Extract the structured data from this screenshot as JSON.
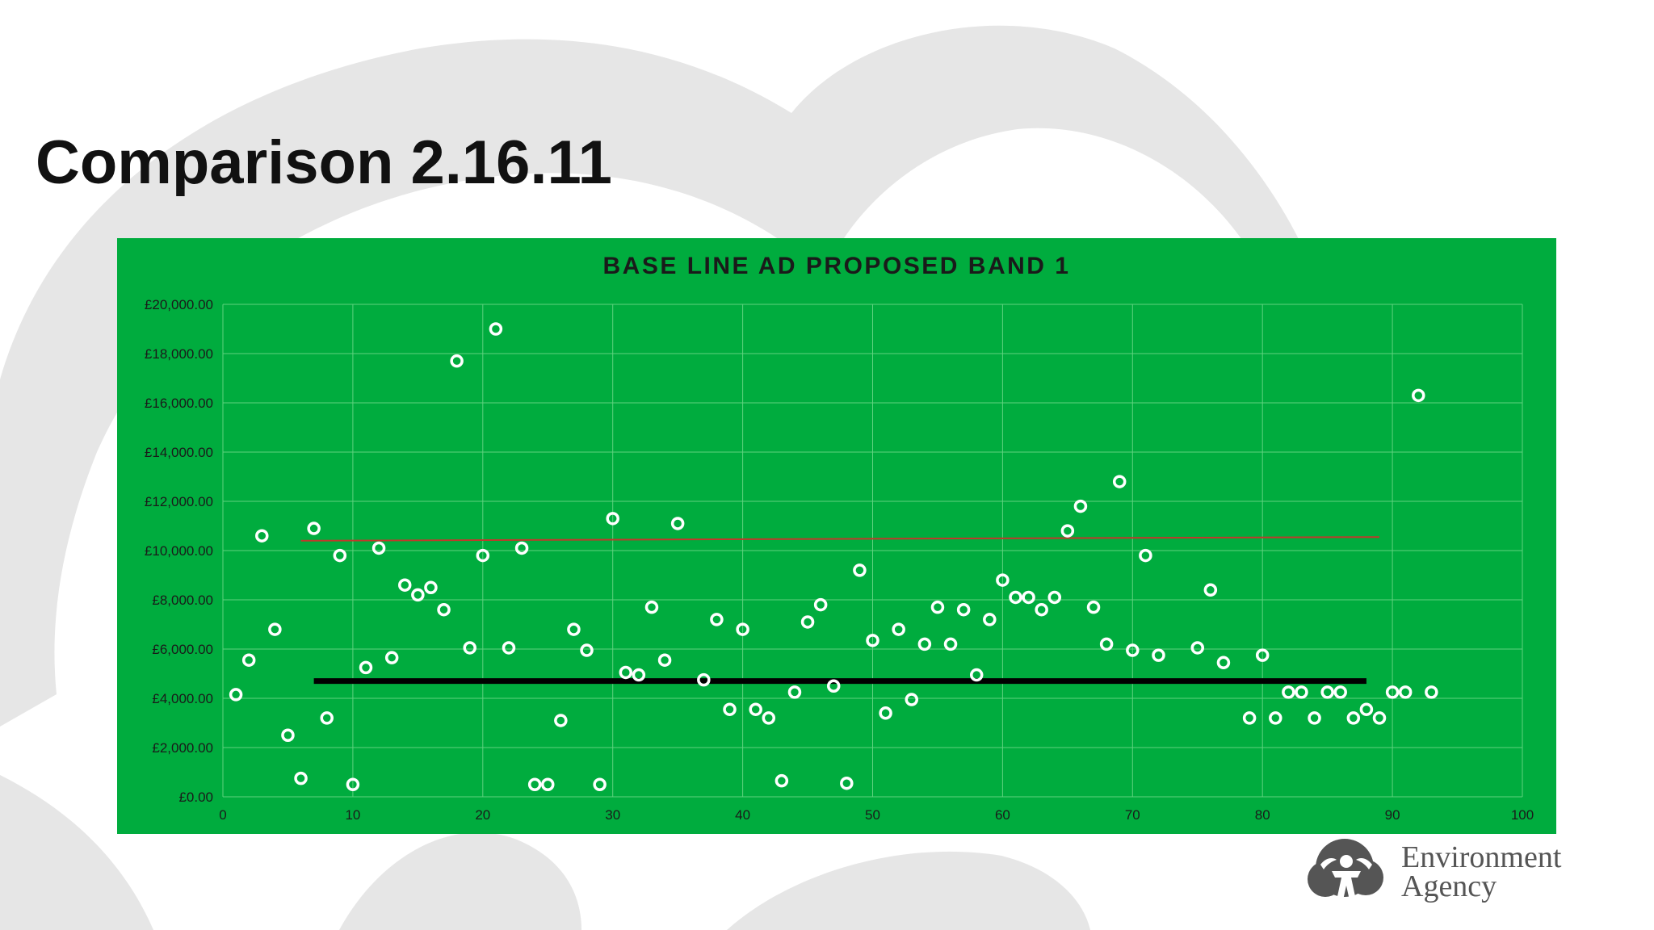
{
  "page": {
    "title": "Comparison 2.16.11",
    "logo_line1": "Environment",
    "logo_line2": "Agency"
  },
  "colors": {
    "chart_background": "#00ac3e",
    "marker": "#ffffff",
    "baseline": "#000000",
    "trendline": "#c0392b",
    "gridline": "#5fd27f"
  },
  "chart_data": {
    "type": "scatter",
    "title": "BASE LINE AD PROPOSED BAND 1",
    "xlabel": "",
    "ylabel": "",
    "xlim": [
      0,
      100
    ],
    "ylim": [
      0,
      20000
    ],
    "x_ticks": [
      "0",
      "10",
      "20",
      "30",
      "40",
      "50",
      "60",
      "70",
      "80",
      "90",
      "100"
    ],
    "y_ticks": [
      "£0.00",
      "£2,000.00",
      "£4,000.00",
      "£6,000.00",
      "£8,000.00",
      "£10,000.00",
      "£12,000.00",
      "£14,000.00",
      "£16,000.00",
      "£18,000.00",
      "£20,000.00"
    ],
    "grid": true,
    "legend": "none",
    "series": [
      {
        "type": "scatter",
        "points": [
          [
            1,
            4150
          ],
          [
            2,
            5550
          ],
          [
            3,
            10600
          ],
          [
            4,
            6800
          ],
          [
            5,
            2500
          ],
          [
            6,
            750
          ],
          [
            7,
            10900
          ],
          [
            8,
            3200
          ],
          [
            9,
            9800
          ],
          [
            10,
            500
          ],
          [
            11,
            5250
          ],
          [
            12,
            10100
          ],
          [
            13,
            5650
          ],
          [
            14,
            8600
          ],
          [
            15,
            8200
          ],
          [
            16,
            8500
          ],
          [
            17,
            7600
          ],
          [
            18,
            17700
          ],
          [
            19,
            6050
          ],
          [
            20,
            9800
          ],
          [
            21,
            19000
          ],
          [
            22,
            6050
          ],
          [
            23,
            10100
          ],
          [
            24,
            500
          ],
          [
            25,
            500
          ],
          [
            26,
            3100
          ],
          [
            27,
            6800
          ],
          [
            28,
            5950
          ],
          [
            29,
            500
          ],
          [
            30,
            11300
          ],
          [
            31,
            5050
          ],
          [
            32,
            4950
          ],
          [
            33,
            7700
          ],
          [
            34,
            5550
          ],
          [
            35,
            11100
          ],
          [
            37,
            4750
          ],
          [
            38,
            7200
          ],
          [
            39,
            3550
          ],
          [
            40,
            6800
          ],
          [
            41,
            3550
          ],
          [
            42,
            3200
          ],
          [
            43,
            650
          ],
          [
            44,
            4250
          ],
          [
            45,
            7100
          ],
          [
            46,
            7800
          ],
          [
            47,
            4500
          ],
          [
            48,
            550
          ],
          [
            49,
            9200
          ],
          [
            50,
            6350
          ],
          [
            51,
            3400
          ],
          [
            52,
            6800
          ],
          [
            53,
            3950
          ],
          [
            54,
            6200
          ],
          [
            55,
            7700
          ],
          [
            56,
            6200
          ],
          [
            57,
            7600
          ],
          [
            58,
            4950
          ],
          [
            59,
            7200
          ],
          [
            60,
            8800
          ],
          [
            61,
            8100
          ],
          [
            62,
            8100
          ],
          [
            63,
            7600
          ],
          [
            64,
            8100
          ],
          [
            65,
            10800
          ],
          [
            66,
            11800
          ],
          [
            67,
            7700
          ],
          [
            68,
            6200
          ],
          [
            69,
            12800
          ],
          [
            70,
            5950
          ],
          [
            71,
            9800
          ],
          [
            72,
            5750
          ],
          [
            75,
            6050
          ],
          [
            76,
            8400
          ],
          [
            77,
            5450
          ],
          [
            79,
            3200
          ],
          [
            80,
            5750
          ],
          [
            81,
            3200
          ],
          [
            82,
            4250
          ],
          [
            83,
            4250
          ],
          [
            84,
            3200
          ],
          [
            85,
            4250
          ],
          [
            86,
            4250
          ],
          [
            87,
            3200
          ],
          [
            88,
            3550
          ],
          [
            89,
            3200
          ],
          [
            90,
            4250
          ],
          [
            91,
            4250
          ],
          [
            92,
            16300
          ],
          [
            93,
            4250
          ]
        ]
      },
      {
        "type": "line",
        "role": "baseline",
        "points": [
          [
            7,
            4700
          ],
          [
            88,
            4700
          ]
        ]
      },
      {
        "type": "line",
        "role": "trend",
        "points": [
          [
            6,
            10400
          ],
          [
            89,
            10550
          ]
        ]
      }
    ]
  }
}
